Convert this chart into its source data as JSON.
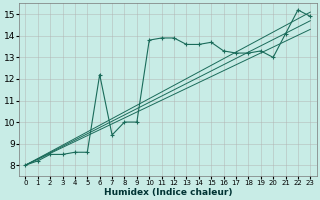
{
  "title": "",
  "xlabel": "Humidex (Indice chaleur)",
  "ylabel": "",
  "background_color": "#c8ece6",
  "grid_color": "#b0b0b0",
  "line_color": "#1a6b5a",
  "xlim": [
    -0.5,
    23.5
  ],
  "ylim": [
    7.5,
    15.5
  ],
  "xticks": [
    0,
    1,
    2,
    3,
    4,
    5,
    6,
    7,
    8,
    9,
    10,
    11,
    12,
    13,
    14,
    15,
    16,
    17,
    18,
    19,
    20,
    21,
    22,
    23
  ],
  "yticks": [
    8,
    9,
    10,
    11,
    12,
    13,
    14,
    15
  ],
  "series1_x": [
    0,
    1,
    2,
    3,
    4,
    5,
    6,
    7,
    8,
    9,
    10,
    11,
    12,
    13,
    14,
    15,
    16,
    17,
    18,
    19,
    20,
    21,
    22,
    23
  ],
  "series1_y": [
    8.0,
    8.2,
    8.5,
    8.5,
    8.6,
    8.6,
    12.2,
    9.4,
    10.0,
    10.0,
    13.8,
    13.9,
    13.9,
    13.6,
    13.6,
    13.7,
    13.3,
    13.2,
    13.2,
    13.3,
    13.0,
    14.1,
    15.2,
    14.9
  ],
  "diag_lines": [
    {
      "x": [
        0,
        23
      ],
      "y": [
        8.0,
        15.1
      ]
    },
    {
      "x": [
        0,
        23
      ],
      "y": [
        8.0,
        14.7
      ]
    },
    {
      "x": [
        0,
        23
      ],
      "y": [
        8.0,
        14.3
      ]
    }
  ]
}
